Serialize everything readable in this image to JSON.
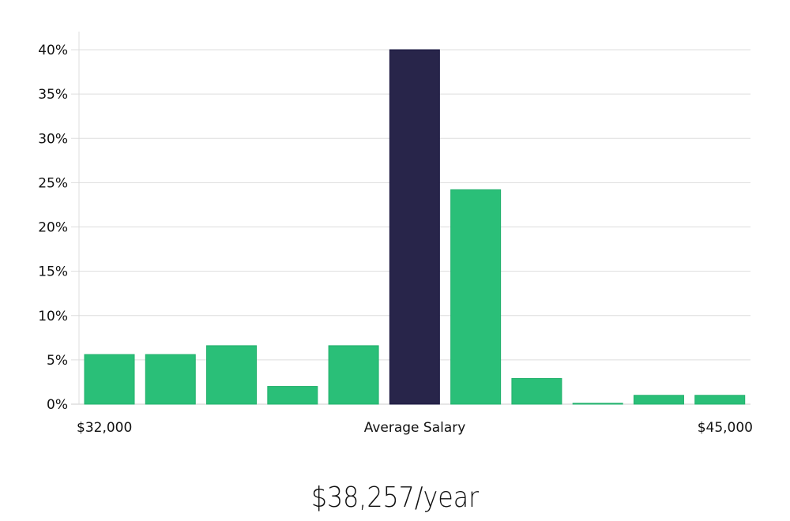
{
  "chart_data": {
    "type": "bar",
    "title": "",
    "xlabel": "Average Salary",
    "ylabel": "",
    "x_min_label": "$32,000",
    "x_max_label": "$45,000",
    "ylim": [
      0,
      40
    ],
    "yticks": [
      "0%",
      "5%",
      "10%",
      "15%",
      "20%",
      "25%",
      "30%",
      "35%",
      "40%"
    ],
    "ytick_values": [
      0,
      5,
      10,
      15,
      20,
      25,
      30,
      35,
      40
    ],
    "grid": true,
    "values": [
      5.6,
      5.6,
      6.6,
      2.0,
      6.6,
      40.0,
      24.2,
      2.9,
      0.1,
      1.0,
      1.0
    ],
    "highlight_index": 5,
    "colors": {
      "bar": "#2abf78",
      "highlight": "#28254a",
      "grid": "#dddddd"
    }
  },
  "summary": {
    "average_salary": "$38,257/year"
  }
}
